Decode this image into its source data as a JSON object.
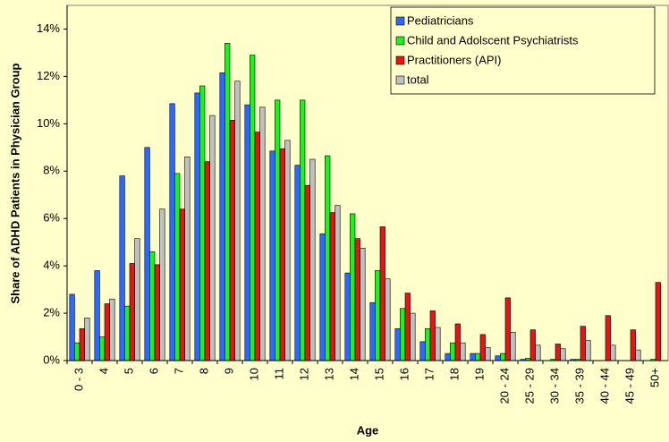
{
  "chart_data": {
    "type": "bar",
    "ylabel": "Share of ADHD Patients in Physician Group",
    "xlabel": "Age",
    "categories": [
      "0 - 3",
      "4",
      "5",
      "6",
      "7",
      "8",
      "9",
      "10",
      "11",
      "12",
      "13",
      "14",
      "15",
      "16",
      "17",
      "18",
      "19",
      "20 - 24",
      "25 - 29",
      "30 - 34",
      "35 - 39",
      "40 - 44",
      "45 - 49",
      "50+"
    ],
    "series": [
      {
        "name": "Pediatricians",
        "color": "#3366ff",
        "values": [
          2.8,
          3.8,
          7.8,
          9.0,
          10.85,
          11.3,
          12.15,
          10.8,
          8.85,
          8.25,
          5.35,
          3.7,
          2.45,
          1.35,
          0.8,
          0.3,
          0.3,
          0.2,
          0.05,
          0,
          0.05,
          0,
          0,
          0
        ]
      },
      {
        "name": "Child and Adolscent Psychiatrists",
        "color": "#22ee22",
        "values": [
          0.75,
          1.0,
          2.3,
          4.6,
          7.9,
          11.6,
          13.4,
          12.9,
          11.0,
          11.0,
          8.65,
          6.2,
          3.8,
          2.2,
          1.35,
          0.75,
          0.3,
          0.3,
          0.1,
          0.05,
          0.05,
          0,
          0,
          0.05
        ]
      },
      {
        "name": "Practitioners (API)",
        "color": "#ee1111",
        "values": [
          1.35,
          2.4,
          4.1,
          4.05,
          6.4,
          8.4,
          10.15,
          9.65,
          8.95,
          7.4,
          6.25,
          5.15,
          5.65,
          2.85,
          2.1,
          1.55,
          1.1,
          2.65,
          1.3,
          0.7,
          1.45,
          1.9,
          1.3,
          3.3
        ]
      },
      {
        "name": "total",
        "color": "#c0c0c0",
        "values": [
          1.8,
          2.6,
          5.15,
          6.4,
          8.6,
          10.35,
          11.8,
          10.7,
          9.3,
          8.5,
          6.55,
          4.75,
          3.45,
          2.0,
          1.4,
          0.75,
          0.55,
          1.2,
          0.65,
          0.5,
          0.85,
          0.65,
          0.45,
          0
        ]
      }
    ],
    "ylim": [
      0,
      15
    ],
    "yticks": [
      {
        "value": 0,
        "label": "0%"
      },
      {
        "value": 2,
        "label": "2%"
      },
      {
        "value": 4,
        "label": "4%"
      },
      {
        "value": 6,
        "label": "6%"
      },
      {
        "value": 8,
        "label": "8%"
      },
      {
        "value": 10,
        "label": "10%"
      },
      {
        "value": 12,
        "label": "12%"
      },
      {
        "value": 14,
        "label": "14%"
      }
    ],
    "grid": false,
    "legend": "top-right"
  }
}
